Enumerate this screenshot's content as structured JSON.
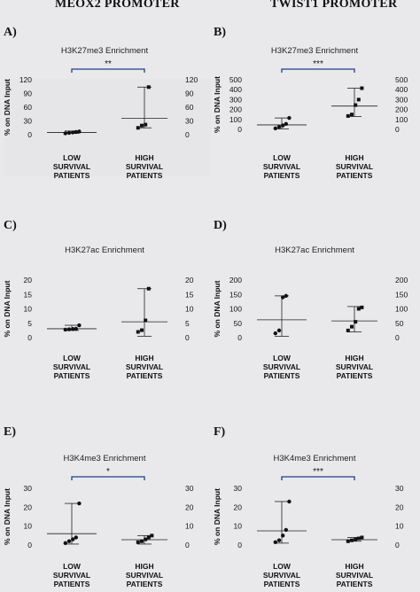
{
  "headers": {
    "left": "MEOX2 PROMOTER",
    "right": "TWIST1 PROMOTER"
  },
  "style": {
    "point_color": "#111111",
    "bracket_color": "#1f3d8a",
    "panel_fill": "#e6e6e9",
    "page_bg": "#e9e9ec"
  },
  "chart_data": [
    {
      "id": "A",
      "panel_label": "A)",
      "type": "scatter",
      "title": "H3K27me3 Enrichment",
      "ylabel": "% on DNA Input",
      "ylim": [
        0,
        120
      ],
      "yticks": [
        0,
        30,
        60,
        90,
        120
      ],
      "categories": [
        "LOW SURVIVAL PATIENTS",
        "HIGH SURVIVAL PATIENTS"
      ],
      "category_lines": [
        [
          "LOW",
          "SURVIVAL",
          "PATIENTS"
        ],
        [
          "HIGH",
          "SURVIVAL",
          "PATIENTS"
        ]
      ],
      "groups": [
        {
          "values": [
            3,
            4,
            5,
            6,
            7
          ],
          "median": 5,
          "range": [
            3,
            8
          ]
        },
        {
          "values": [
            15,
            20,
            22,
            104
          ],
          "median": 36,
          "range": [
            15,
            104
          ]
        }
      ],
      "significance": "**",
      "grid": false
    },
    {
      "id": "B",
      "panel_label": "B)",
      "type": "scatter",
      "title": "H3K27me3 Enrichment",
      "ylabel": "% on DNA Input",
      "ylim": [
        0,
        500
      ],
      "yticks": [
        0,
        100,
        200,
        300,
        400,
        500
      ],
      "categories": [
        "LOW SURVIVAL PATIENTS",
        "HIGH SURVIVAL PATIENTS"
      ],
      "category_lines": [
        [
          "LOW",
          "SURVIVAL",
          "PATIENTS"
        ],
        [
          "HIGH",
          "SURVIVAL",
          "PATIENTS"
        ]
      ],
      "groups": [
        {
          "values": [
            10,
            25,
            40,
            55,
            115
          ],
          "median": 45,
          "range": [
            5,
            115
          ]
        },
        {
          "values": [
            135,
            150,
            245,
            300,
            415
          ],
          "median": 235,
          "range": [
            130,
            415
          ]
        }
      ],
      "significance": "***",
      "grid": false
    },
    {
      "id": "C",
      "panel_label": "C)",
      "type": "scatter",
      "title": "H3K27ac Enrichment",
      "ylabel": "% on DNA Input",
      "ylim": [
        0,
        20
      ],
      "yticks": [
        0,
        5,
        10,
        15,
        20
      ],
      "categories": [
        "LOW SURVIVAL PATIENTS",
        "HIGH SURVIVAL PATIENTS"
      ],
      "category_lines": [
        [
          "LOW",
          "SURVIVAL",
          "PATIENTS"
        ],
        [
          "HIGH",
          "SURVIVAL",
          "PATIENTS"
        ]
      ],
      "groups": [
        {
          "values": [
            2.8,
            2.9,
            3.0,
            3.1,
            4.3
          ],
          "median": 3.1,
          "range": [
            2.5,
            4.3
          ]
        },
        {
          "values": [
            2.0,
            2.6,
            6.0,
            17.0
          ],
          "median": 5.5,
          "range": [
            0.5,
            17.0
          ]
        }
      ],
      "significance": "",
      "grid": false
    },
    {
      "id": "D",
      "panel_label": "D)",
      "type": "scatter",
      "title": "H3K27ac Enrichment",
      "ylabel": "% on DNA Input",
      "ylim": [
        0,
        200
      ],
      "yticks": [
        0,
        50,
        100,
        150,
        200
      ],
      "categories": [
        "LOW SURVIVAL PATIENTS",
        "HIGH SURVIVAL PATIENTS"
      ],
      "category_lines": [
        [
          "LOW",
          "SURVIVAL",
          "PATIENTS"
        ],
        [
          "HIGH",
          "SURVIVAL",
          "PATIENTS"
        ]
      ],
      "groups": [
        {
          "values": [
            15,
            25,
            140,
            145
          ],
          "median": 62,
          "range": [
            5,
            145
          ]
        },
        {
          "values": [
            25,
            38,
            55,
            100,
            105
          ],
          "median": 58,
          "range": [
            20,
            108
          ]
        }
      ],
      "significance": "",
      "grid": false
    },
    {
      "id": "E",
      "panel_label": "E)",
      "type": "scatter",
      "title": "H3K4me3 Enrichment",
      "ylabel": "% on DNA Input",
      "ylim": [
        0,
        30
      ],
      "yticks": [
        0,
        10,
        20,
        30
      ],
      "categories": [
        "LOW SURVIVAL PATIENTS",
        "HIGH SURVIVAL PATIENTS"
      ],
      "category_lines": [
        [
          "LOW",
          "SURVIVAL",
          "PATIENTS"
        ],
        [
          "HIGH",
          "SURVIVAL",
          "PATIENTS"
        ]
      ],
      "groups": [
        {
          "values": [
            1,
            2,
            3,
            4,
            22
          ],
          "median": 6,
          "range": [
            0.5,
            22
          ]
        },
        {
          "values": [
            1.5,
            2,
            3,
            4,
            5
          ],
          "median": 2.8,
          "range": [
            0.5,
            5
          ]
        }
      ],
      "significance": "*",
      "grid": false
    },
    {
      "id": "F",
      "panel_label": "F)",
      "type": "scatter",
      "title": "H3K4me3 Enrichment",
      "ylabel": "% on DNA Input",
      "ylim": [
        0,
        30
      ],
      "yticks": [
        0,
        10,
        20,
        30
      ],
      "categories": [
        "LOW SURVIVAL PATIENTS",
        "HIGH SURVIVAL PATIENTS"
      ],
      "category_lines": [
        [
          "LOW",
          "SURVIVAL",
          "PATIENTS"
        ],
        [
          "HIGH",
          "SURVIVAL",
          "PATIENTS"
        ]
      ],
      "groups": [
        {
          "values": [
            1.5,
            2.5,
            5,
            8,
            23
          ],
          "median": 7.5,
          "range": [
            1,
            23
          ]
        },
        {
          "values": [
            2,
            2.5,
            3,
            3.5,
            4
          ],
          "median": 2.8,
          "range": [
            2,
            4
          ]
        }
      ],
      "significance": "***",
      "grid": false
    }
  ]
}
